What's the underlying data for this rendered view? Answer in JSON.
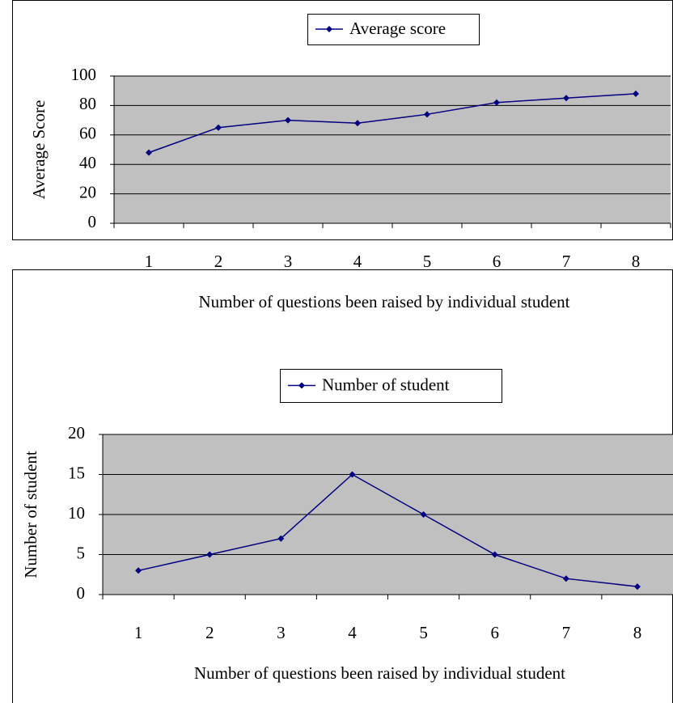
{
  "chart_data": [
    {
      "type": "line",
      "x_label": "Number of questions been raised by individual student",
      "y_label": "Average Score",
      "categories": [
        "1",
        "2",
        "3",
        "4",
        "5",
        "6",
        "7",
        "8"
      ],
      "series": [
        {
          "name": "Average score",
          "color": "#000080",
          "values": [
            48,
            65,
            70,
            68,
            74,
            82,
            85,
            88
          ]
        }
      ],
      "ylim": [
        0,
        100
      ],
      "yticks": [
        0,
        20,
        40,
        60,
        80,
        100
      ],
      "grid": true,
      "legend": "top"
    },
    {
      "type": "line",
      "x_label": "Number of questions been raised by individual student",
      "y_label": "Number of student",
      "categories": [
        "1",
        "2",
        "3",
        "4",
        "5",
        "6",
        "7",
        "8"
      ],
      "series": [
        {
          "name": "Number of student",
          "color": "#000080",
          "values": [
            3,
            5,
            7,
            15,
            10,
            5,
            2,
            1
          ]
        }
      ],
      "ylim": [
        0,
        20
      ],
      "yticks": [
        0,
        5,
        10,
        15,
        20
      ],
      "grid": true,
      "legend": "top"
    }
  ]
}
